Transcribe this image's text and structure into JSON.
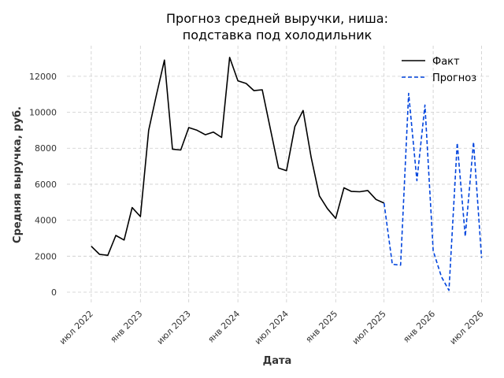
{
  "chart_data": {
    "type": "line",
    "title_lines": [
      "Прогноз средней выручки, ниша:",
      "подставка под холодильник"
    ],
    "xlabel": "Дата",
    "ylabel": "Средняя выручка, руб.",
    "xlim": [
      "2022-04-01",
      "2026-08-01"
    ],
    "ylim": [
      -700,
      13700
    ],
    "grid": true,
    "legend_position": "top-right",
    "x_ticks": [
      {
        "date": "2022-07-01",
        "label": "июл 2022"
      },
      {
        "date": "2023-01-01",
        "label": "янв 2023"
      },
      {
        "date": "2023-07-01",
        "label": "июл 2023"
      },
      {
        "date": "2024-01-01",
        "label": "янв 2024"
      },
      {
        "date": "2024-07-01",
        "label": "июл 2024"
      },
      {
        "date": "2025-01-01",
        "label": "янв 2025"
      },
      {
        "date": "2025-07-01",
        "label": "июл 2025"
      },
      {
        "date": "2026-01-01",
        "label": "янв 2026"
      },
      {
        "date": "2026-07-01",
        "label": "июл 2026"
      }
    ],
    "y_ticks": [
      {
        "value": 0,
        "label": "0"
      },
      {
        "value": 2000,
        "label": "2000"
      },
      {
        "value": 4000,
        "label": "4000"
      },
      {
        "value": 6000,
        "label": "6000"
      },
      {
        "value": 8000,
        "label": "8000"
      },
      {
        "value": 10000,
        "label": "10000"
      },
      {
        "value": 12000,
        "label": "12000"
      }
    ],
    "series": [
      {
        "name": "Факт",
        "color": "#000000",
        "style": "solid",
        "points": [
          [
            "2022-07-01",
            2550
          ],
          [
            "2022-08-01",
            2100
          ],
          [
            "2022-09-01",
            2050
          ],
          [
            "2022-10-01",
            3150
          ],
          [
            "2022-11-01",
            2900
          ],
          [
            "2022-12-01",
            4700
          ],
          [
            "2023-01-01",
            4200
          ],
          [
            "2023-02-01",
            9000
          ],
          [
            "2023-03-01",
            10900
          ],
          [
            "2023-04-01",
            12900
          ],
          [
            "2023-05-01",
            7950
          ],
          [
            "2023-06-01",
            7900
          ],
          [
            "2023-07-01",
            9150
          ],
          [
            "2023-08-01",
            9000
          ],
          [
            "2023-09-01",
            8750
          ],
          [
            "2023-10-01",
            8900
          ],
          [
            "2023-11-01",
            8600
          ],
          [
            "2023-12-01",
            13050
          ],
          [
            "2024-01-01",
            11750
          ],
          [
            "2024-02-01",
            11600
          ],
          [
            "2024-03-01",
            11200
          ],
          [
            "2024-04-01",
            11250
          ],
          [
            "2024-05-01",
            9100
          ],
          [
            "2024-06-01",
            6900
          ],
          [
            "2024-07-01",
            6750
          ],
          [
            "2024-08-01",
            9200
          ],
          [
            "2024-09-01",
            10100
          ],
          [
            "2024-10-01",
            7500
          ],
          [
            "2024-11-01",
            5350
          ],
          [
            "2024-12-01",
            4650
          ],
          [
            "2025-01-01",
            4100
          ],
          [
            "2025-02-01",
            5800
          ],
          [
            "2025-03-01",
            5600
          ],
          [
            "2025-04-01",
            5580
          ],
          [
            "2025-05-01",
            5650
          ],
          [
            "2025-06-01",
            5150
          ],
          [
            "2025-07-01",
            4950
          ]
        ]
      },
      {
        "name": "Прогноз",
        "color": "#0044dd",
        "style": "dashed",
        "points": [
          [
            "2025-07-01",
            4950
          ],
          [
            "2025-08-01",
            1550
          ],
          [
            "2025-09-01",
            1500
          ],
          [
            "2025-10-01",
            11050
          ],
          [
            "2025-11-01",
            6200
          ],
          [
            "2025-12-01",
            10400
          ],
          [
            "2026-01-01",
            2300
          ],
          [
            "2026-02-01",
            850
          ],
          [
            "2026-03-01",
            100
          ],
          [
            "2026-04-01",
            8300
          ],
          [
            "2026-05-01",
            3100
          ],
          [
            "2026-06-01",
            8350
          ],
          [
            "2026-07-01",
            1900
          ]
        ]
      }
    ]
  }
}
